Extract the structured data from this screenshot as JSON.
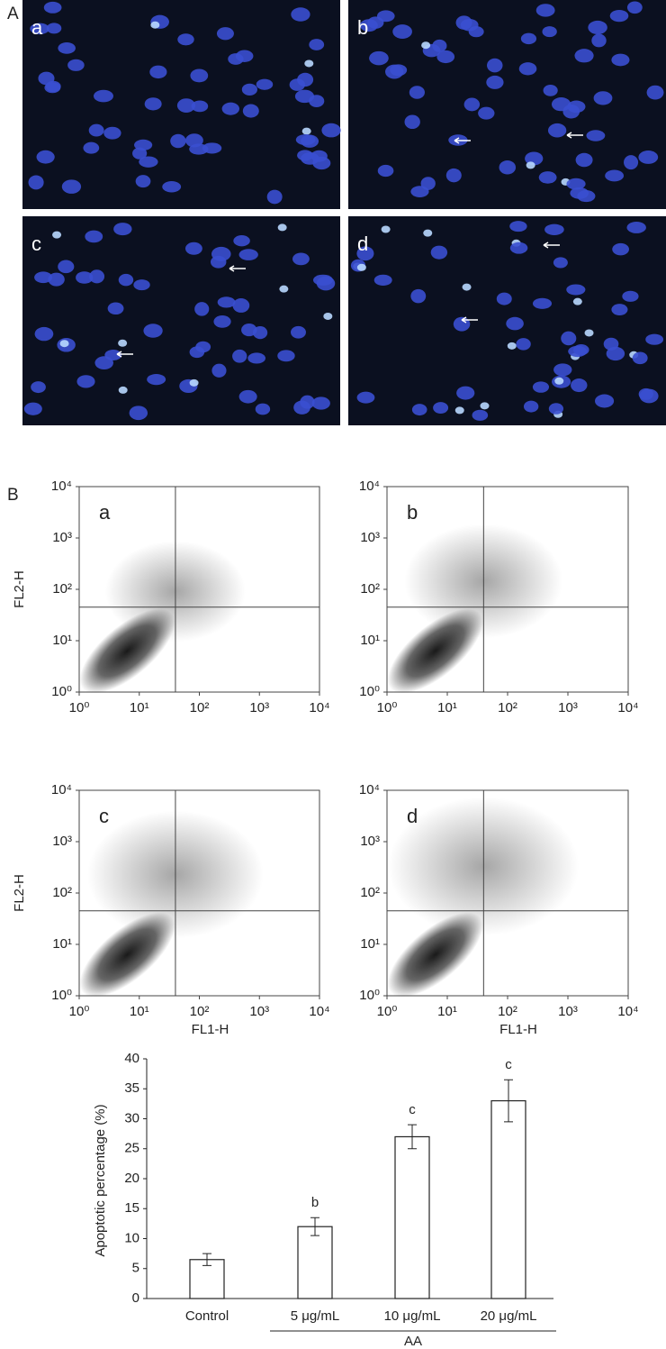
{
  "panel_a": {
    "label": "A",
    "images": [
      {
        "label": "a"
      },
      {
        "label": "b"
      },
      {
        "label": "c"
      },
      {
        "label": "d"
      }
    ]
  },
  "panel_b": {
    "label": "B"
  },
  "chart_data": [
    {
      "type": "flow",
      "label": "a",
      "log": true,
      "xlim": [
        1,
        10000
      ],
      "ylim": [
        1,
        10000
      ],
      "xticks": [
        {
          "value": 1,
          "label": "10⁰"
        },
        {
          "value": 10,
          "label": "10¹"
        },
        {
          "value": 100,
          "label": "10²"
        },
        {
          "value": 1000,
          "label": "10³"
        },
        {
          "value": 10000,
          "label": "10⁴"
        }
      ],
      "yticks": [
        {
          "value": 1,
          "label": "10⁰"
        },
        {
          "value": 10,
          "label": "10¹"
        },
        {
          "value": 100,
          "label": "10²"
        },
        {
          "value": 1000,
          "label": "10³"
        },
        {
          "value": 10000,
          "label": "10⁴"
        }
      ],
      "ylabel": "FL2-H",
      "quadrant": [
        40,
        45
      ]
    },
    {
      "type": "flow",
      "label": "b",
      "log": true,
      "xlim": [
        1,
        10000
      ],
      "ylim": [
        1,
        10000
      ],
      "xticks": [
        {
          "value": 1,
          "label": "10⁰"
        },
        {
          "value": 10,
          "label": "10¹"
        },
        {
          "value": 100,
          "label": "10²"
        },
        {
          "value": 1000,
          "label": "10³"
        },
        {
          "value": 10000,
          "label": "10⁴"
        }
      ],
      "yticks": [
        {
          "value": 1,
          "label": "10⁰"
        },
        {
          "value": 10,
          "label": "10¹"
        },
        {
          "value": 100,
          "label": "10²"
        },
        {
          "value": 1000,
          "label": "10³"
        },
        {
          "value": 10000,
          "label": "10⁴"
        }
      ],
      "quadrant": [
        40,
        45
      ]
    },
    {
      "type": "flow",
      "label": "c",
      "log": true,
      "xlim": [
        1,
        10000
      ],
      "ylim": [
        1,
        10000
      ],
      "xticks": [
        {
          "value": 1,
          "label": "10⁰"
        },
        {
          "value": 10,
          "label": "10¹"
        },
        {
          "value": 100,
          "label": "10²"
        },
        {
          "value": 1000,
          "label": "10³"
        },
        {
          "value": 10000,
          "label": "10⁴"
        }
      ],
      "yticks": [
        {
          "value": 1,
          "label": "10⁰"
        },
        {
          "value": 10,
          "label": "10¹"
        },
        {
          "value": 100,
          "label": "10²"
        },
        {
          "value": 1000,
          "label": "10³"
        },
        {
          "value": 10000,
          "label": "10⁴"
        }
      ],
      "xlabel": "FL1-H",
      "ylabel": "FL2-H",
      "quadrant": [
        40,
        45
      ]
    },
    {
      "type": "flow",
      "label": "d",
      "log": true,
      "xlim": [
        1,
        10000
      ],
      "ylim": [
        1,
        10000
      ],
      "xticks": [
        {
          "value": 1,
          "label": "10⁰"
        },
        {
          "value": 10,
          "label": "10¹"
        },
        {
          "value": 100,
          "label": "10²"
        },
        {
          "value": 1000,
          "label": "10³"
        },
        {
          "value": 10000,
          "label": "10⁴"
        }
      ],
      "yticks": [
        {
          "value": 1,
          "label": "10⁰"
        },
        {
          "value": 10,
          "label": "10¹"
        },
        {
          "value": 100,
          "label": "10²"
        },
        {
          "value": 1000,
          "label": "10³"
        },
        {
          "value": 10000,
          "label": "10⁴"
        }
      ],
      "xlabel": "FL1-H",
      "quadrant": [
        40,
        45
      ]
    },
    {
      "type": "bar",
      "ylabel": "Apoptotic percentage (%)",
      "categories": [
        "Control",
        "5 μg/mL",
        "10 μg/mL",
        "20 μg/mL"
      ],
      "values": [
        6.5,
        12,
        27,
        33
      ],
      "errors": [
        1,
        1.5,
        2,
        3.5
      ],
      "significance": [
        null,
        "b",
        "c",
        "c"
      ],
      "group_label": "AA",
      "color": "#ffffff",
      "ylim": [
        0,
        40
      ],
      "yticks": [
        0,
        5,
        10,
        15,
        20,
        25,
        30,
        35,
        40
      ]
    }
  ]
}
